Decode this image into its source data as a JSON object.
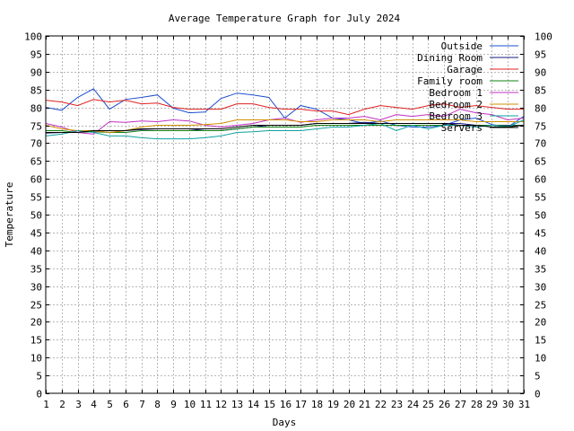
{
  "chart_data": {
    "type": "line",
    "title": "Average Temperature Graph for July 2024",
    "xlabel": "Days",
    "ylabel": "Temperature",
    "xlim": [
      1,
      31
    ],
    "ylim": [
      0,
      100
    ],
    "grid": true,
    "legend": "top-right",
    "x": [
      1,
      2,
      3,
      4,
      5,
      6,
      7,
      8,
      9,
      10,
      11,
      12,
      13,
      14,
      15,
      16,
      17,
      18,
      19,
      20,
      21,
      22,
      23,
      24,
      25,
      26,
      27,
      28,
      29,
      30,
      31
    ],
    "x_ticks": [
      "1",
      "2",
      "3",
      "4",
      "5",
      "6",
      "7",
      "8",
      "9",
      "10",
      "11",
      "12",
      "13",
      "14",
      "15",
      "16",
      "17",
      "18",
      "19",
      "20",
      "21",
      "22",
      "23",
      "24",
      "25",
      "26",
      "27",
      "28",
      "29",
      "30",
      "31"
    ],
    "y_ticks": [
      "0",
      "5",
      "10",
      "15",
      "20",
      "25",
      "30",
      "35",
      "40",
      "45",
      "50",
      "55",
      "60",
      "65",
      "70",
      "75",
      "80",
      "85",
      "90",
      "95",
      "100"
    ],
    "series": [
      {
        "name": "Outside",
        "color": "#1f4fd0",
        "values": [
          80.0,
          79.2,
          82.8,
          85.2,
          79.5,
          82.2,
          82.8,
          83.5,
          79.8,
          78.5,
          78.7,
          82.5,
          84.0,
          83.5,
          82.8,
          77.0,
          80.5,
          79.5,
          77.0,
          76.5,
          75.5,
          76.2,
          75.0,
          74.5,
          74.5,
          75.0,
          76.5,
          77.0,
          75.2,
          74.5,
          77.5
        ]
      },
      {
        "name": "Dining Room",
        "color": "#1a1a80",
        "values": [
          72.8,
          73.0,
          73.0,
          73.5,
          73.0,
          73.5,
          73.8,
          74.0,
          74.0,
          74.0,
          73.5,
          73.5,
          74.0,
          74.5,
          75.0,
          75.0,
          75.0,
          75.5,
          75.5,
          75.5,
          75.8,
          75.5,
          75.5,
          75.5,
          75.5,
          75.5,
          75.5,
          75.0,
          75.0,
          75.0,
          75.0
        ]
      },
      {
        "name": "Garage",
        "color": "#e02020",
        "values": [
          82.0,
          81.5,
          80.5,
          82.2,
          81.5,
          82.0,
          81.0,
          81.2,
          80.0,
          79.5,
          79.5,
          79.5,
          81.0,
          81.0,
          80.0,
          79.5,
          79.5,
          79.0,
          79.0,
          78.0,
          79.5,
          80.5,
          80.0,
          79.5,
          80.5,
          81.0,
          80.0,
          80.5,
          80.0,
          79.5,
          79.5
        ]
      },
      {
        "name": "Family room",
        "color": "#108010",
        "values": [
          73.5,
          73.5,
          73.0,
          73.2,
          73.0,
          73.0,
          73.5,
          73.5,
          73.5,
          73.5,
          73.5,
          73.5,
          74.0,
          74.5,
          74.5,
          74.5,
          74.5,
          75.0,
          75.0,
          75.0,
          75.0,
          75.0,
          75.0,
          75.0,
          75.0,
          75.0,
          75.0,
          75.0,
          75.0,
          74.8,
          75.0
        ]
      },
      {
        "name": "Bedroom 1",
        "color": "#c030c0",
        "values": [
          75.5,
          74.5,
          73.0,
          72.5,
          76.0,
          75.8,
          76.2,
          76.0,
          76.5,
          76.2,
          75.0,
          74.5,
          75.0,
          75.5,
          76.5,
          77.0,
          75.8,
          76.5,
          77.0,
          77.0,
          77.5,
          76.5,
          78.0,
          77.5,
          78.0,
          77.5,
          79.5,
          78.5,
          78.0,
          76.5,
          77.0
        ]
      },
      {
        "name": "Bedroom 2",
        "color": "#d09000",
        "values": [
          75.0,
          74.0,
          73.5,
          73.5,
          73.0,
          73.5,
          74.5,
          75.0,
          75.0,
          75.0,
          75.2,
          75.5,
          76.5,
          76.5,
          76.5,
          76.5,
          76.0,
          76.0,
          76.5,
          76.5,
          76.5,
          76.0,
          76.5,
          76.5,
          76.5,
          76.5,
          76.5,
          76.0,
          76.0,
          76.0,
          76.0
        ]
      },
      {
        "name": "Bedroom 3",
        "color": "#10a0a0",
        "values": [
          72.0,
          72.5,
          73.5,
          73.0,
          72.0,
          72.0,
          71.5,
          71.2,
          71.2,
          71.2,
          71.5,
          72.0,
          73.0,
          73.2,
          73.5,
          73.5,
          73.5,
          74.0,
          74.5,
          74.5,
          75.0,
          75.5,
          73.5,
          75.0,
          74.0,
          75.0,
          75.0,
          74.5,
          75.0,
          74.5,
          76.5
        ]
      },
      {
        "name": "Servers",
        "color": "#000000",
        "values": [
          73.0,
          73.0,
          73.0,
          73.5,
          73.5,
          73.5,
          74.0,
          74.0,
          74.0,
          74.0,
          74.0,
          74.0,
          74.5,
          75.0,
          75.0,
          75.0,
          75.0,
          75.5,
          75.5,
          75.5,
          75.5,
          75.5,
          75.5,
          75.5,
          75.5,
          75.5,
          75.0,
          75.0,
          74.5,
          74.5,
          75.0
        ]
      }
    ]
  }
}
